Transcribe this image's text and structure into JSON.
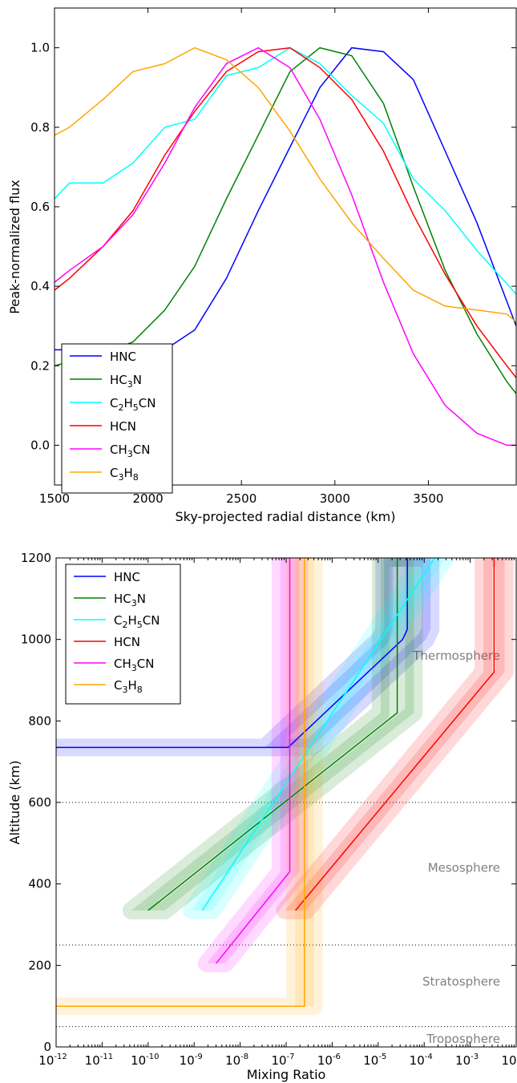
{
  "colors": {
    "HNC": "#0000ff",
    "HC3N": "#008000",
    "C2H5CN": "#00ffff",
    "HCN": "#ff0000",
    "CH3CN": "#ff00ff",
    "C3H8": "#ffa500"
  },
  "chart_data": [
    {
      "type": "line",
      "title": "",
      "xlabel": "Sky-projected radial distance (km)",
      "ylabel": "Peak-normalized flux",
      "xlim": [
        1500,
        3970
      ],
      "ylim": [
        -0.1,
        1.1
      ],
      "x_ticks": [
        1500,
        2000,
        2500,
        3000,
        3500
      ],
      "y_ticks": [
        0.0,
        0.2,
        0.4,
        0.6,
        0.8,
        1.0
      ],
      "x_tick_labels": [
        "1500",
        "2000",
        "2500",
        "3000",
        "3500"
      ],
      "y_tick_labels": [
        "0.0",
        "0.2",
        "0.4",
        "0.6",
        "0.8",
        "1.0"
      ],
      "grid": false,
      "legend_position": "lower-left",
      "series": [
        {
          "key": "HNC",
          "legend": [
            "HNC",
            "",
            ""
          ],
          "x": [
            1500,
            1580,
            1760,
            1920,
            2090,
            2250,
            2420,
            2590,
            2760,
            2920,
            3090,
            3260,
            3420,
            3590,
            3760,
            3970
          ],
          "y": [
            0.24,
            0.24,
            0.24,
            0.24,
            0.24,
            0.29,
            0.42,
            0.59,
            0.75,
            0.9,
            1.0,
            0.99,
            0.92,
            0.74,
            0.56,
            0.3
          ]
        },
        {
          "key": "HC3N",
          "legend": [
            "HC",
            "3",
            "N"
          ],
          "x": [
            1500,
            1580,
            1760,
            1920,
            2090,
            2250,
            2420,
            2590,
            2760,
            2920,
            3090,
            3260,
            3420,
            3590,
            3760,
            3920,
            3970
          ],
          "y": [
            0.2,
            0.21,
            0.23,
            0.26,
            0.34,
            0.45,
            0.62,
            0.78,
            0.94,
            1.0,
            0.98,
            0.86,
            0.65,
            0.44,
            0.28,
            0.16,
            0.13
          ]
        },
        {
          "key": "C2H5CN",
          "legend": [
            "C",
            "2",
            "H",
            "5",
            "CN"
          ],
          "x": [
            1500,
            1580,
            1760,
            1920,
            2090,
            2250,
            2420,
            2590,
            2760,
            2920,
            3090,
            3260,
            3420,
            3590,
            3760,
            3970
          ],
          "y": [
            0.62,
            0.66,
            0.66,
            0.71,
            0.8,
            0.82,
            0.93,
            0.95,
            1.0,
            0.96,
            0.88,
            0.81,
            0.67,
            0.59,
            0.49,
            0.38
          ]
        },
        {
          "key": "HCN",
          "legend": [
            "HCN",
            "",
            ""
          ],
          "x": [
            1500,
            1580,
            1760,
            1920,
            2090,
            2250,
            2420,
            2590,
            2760,
            2920,
            3090,
            3260,
            3420,
            3590,
            3760,
            3920,
            3970
          ],
          "y": [
            0.39,
            0.42,
            0.5,
            0.59,
            0.73,
            0.84,
            0.94,
            0.99,
            1.0,
            0.95,
            0.87,
            0.74,
            0.58,
            0.43,
            0.3,
            0.2,
            0.17
          ]
        },
        {
          "key": "CH3CN",
          "legend": [
            "CH",
            "3",
            "CN"
          ],
          "x": [
            1500,
            1580,
            1760,
            1920,
            2090,
            2250,
            2420,
            2590,
            2760,
            2920,
            3090,
            3260,
            3420,
            3590,
            3760,
            3920,
            3970
          ],
          "y": [
            0.41,
            0.44,
            0.5,
            0.58,
            0.71,
            0.85,
            0.96,
            1.0,
            0.95,
            0.82,
            0.63,
            0.41,
            0.23,
            0.1,
            0.03,
            0.0,
            0.0
          ]
        },
        {
          "key": "C3H8",
          "legend": [
            "C",
            "3",
            "H",
            "8",
            ""
          ],
          "x": [
            1500,
            1580,
            1760,
            1920,
            2090,
            2250,
            2420,
            2590,
            2760,
            2920,
            3090,
            3260,
            3420,
            3590,
            3760,
            3920,
            3970
          ],
          "y": [
            0.78,
            0.8,
            0.87,
            0.94,
            0.96,
            1.0,
            0.97,
            0.9,
            0.79,
            0.67,
            0.56,
            0.47,
            0.39,
            0.35,
            0.34,
            0.33,
            0.31
          ]
        }
      ]
    },
    {
      "type": "line",
      "title": "",
      "xlabel": "Mixing Ratio",
      "ylabel": "Altitude (km)",
      "x_scale": "log",
      "xlim": [
        1e-12,
        0.01
      ],
      "ylim": [
        0,
        1200
      ],
      "x_tick_exponents": [
        -12,
        -11,
        -10,
        -9,
        -8,
        -7,
        -6,
        -5,
        -4,
        -3,
        -2
      ],
      "x_tick_base": "10",
      "y_ticks": [
        0,
        200,
        400,
        600,
        800,
        1000,
        1200
      ],
      "y_tick_labels": [
        "0",
        "200",
        "400",
        "600",
        "800",
        "1000",
        "1200"
      ],
      "grid": false,
      "legend_position": "top-left",
      "layers": [
        {
          "name": "Thermosphere",
          "label_alt": 960,
          "boundary": null
        },
        {
          "name": "Mesosphere",
          "label_alt": 440,
          "boundary": 600
        },
        {
          "name": "Stratosphere",
          "label_alt": 160,
          "boundary": 250
        },
        {
          "name": "Troposphere",
          "label_alt": 20,
          "boundary": 50
        }
      ],
      "series": [
        {
          "key": "HNC",
          "legend": [
            "HNC",
            "",
            ""
          ],
          "band_factor": 3.2,
          "x": [
            1e-12,
            1.1e-07,
            3.4e-05,
            4.3e-05,
            4.3e-05
          ],
          "y": [
            735,
            735,
            1000,
            1025,
            1200
          ]
        },
        {
          "key": "HC3N",
          "legend": [
            "HC",
            "3",
            "N"
          ],
          "band_factor": 2.3,
          "x": [
            1e-10,
            2.6e-05,
            2.6e-05
          ],
          "y": [
            335,
            820,
            1200
          ]
        },
        {
          "key": "C2H5CN",
          "legend": [
            "C",
            "2",
            "H",
            "5",
            "CN"
          ],
          "band_factor": 1.7,
          "x": [
            1.5e-09,
            0.00017
          ],
          "y": [
            335,
            1200
          ]
        },
        {
          "key": "HCN",
          "legend": [
            "HCN",
            "",
            ""
          ],
          "band_factor": 1.7,
          "x": [
            1.6e-07,
            0.0033,
            0.0033
          ],
          "y": [
            335,
            920,
            1200
          ]
        },
        {
          "key": "CH3CN",
          "legend": [
            "CH",
            "3",
            "CN"
          ],
          "band_factor": 1.6,
          "x": [
            3e-09,
            1.2e-07,
            1.2e-07
          ],
          "y": [
            205,
            430,
            1200
          ]
        },
        {
          "key": "C3H8",
          "legend": [
            "C",
            "3",
            "H",
            "8",
            ""
          ],
          "band_factor": 1.6,
          "x": [
            1e-12,
            2.5e-07,
            2.5e-07
          ],
          "y": [
            100,
            100,
            1200
          ]
        }
      ]
    }
  ]
}
